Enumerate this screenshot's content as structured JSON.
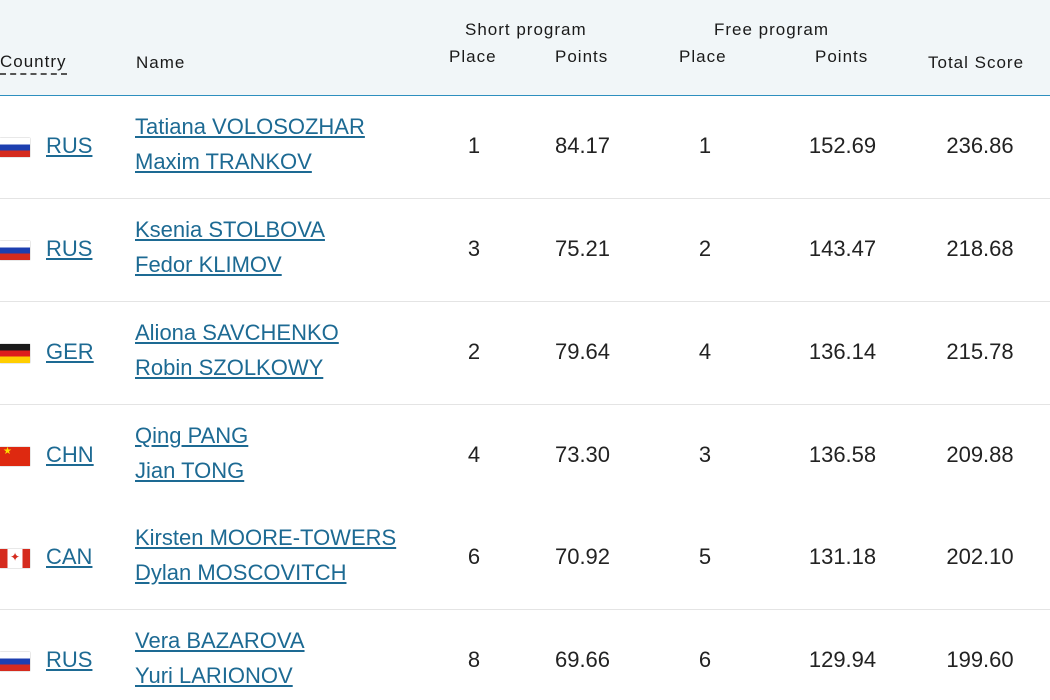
{
  "header": {
    "country": "Country",
    "name": "Name",
    "short_program": "Short program",
    "free_program": "Free program",
    "place": "Place",
    "points": "Points",
    "total_score": "Total Score"
  },
  "rows": [
    {
      "flag": "russia-flag-icon",
      "country": "RUS",
      "skater1": "Tatiana VOLOSOZHAR",
      "skater2": "Maxim TRANKOV",
      "sp_place": "1",
      "sp_points": "84.17",
      "fp_place": "1",
      "fp_points": "152.69",
      "total": "236.86"
    },
    {
      "flag": "russia-flag-icon",
      "country": "RUS",
      "skater1": "Ksenia STOLBOVA",
      "skater2": "Fedor KLIMOV",
      "sp_place": "3",
      "sp_points": "75.21",
      "fp_place": "2",
      "fp_points": "143.47",
      "total": "218.68"
    },
    {
      "flag": "germany-flag-icon",
      "country": "GER",
      "skater1": "Aliona SAVCHENKO",
      "skater2": "Robin SZOLKOWY",
      "sp_place": "2",
      "sp_points": "79.64",
      "fp_place": "4",
      "fp_points": "136.14",
      "total": "215.78"
    },
    {
      "flag": "china-flag-icon",
      "country": "CHN",
      "skater1": "Qing PANG",
      "skater2": "Jian TONG",
      "sp_place": "4",
      "sp_points": "73.30",
      "fp_place": "3",
      "fp_points": "136.58",
      "total": "209.88"
    },
    {
      "flag": "canada-flag-icon",
      "country": "CAN",
      "skater1": "Kirsten MOORE-TOWERS",
      "skater2": "Dylan MOSCOVITCH",
      "sp_place": "6",
      "sp_points": "70.92",
      "fp_place": "5",
      "fp_points": "131.18",
      "total": "202.10"
    },
    {
      "flag": "russia-flag-icon",
      "country": "RUS",
      "skater1": "Vera BAZAROVA",
      "skater2": "Yuri LARIONOV",
      "sp_place": "8",
      "sp_points": "69.66",
      "fp_place": "6",
      "fp_points": "129.94",
      "total": "199.60"
    }
  ]
}
